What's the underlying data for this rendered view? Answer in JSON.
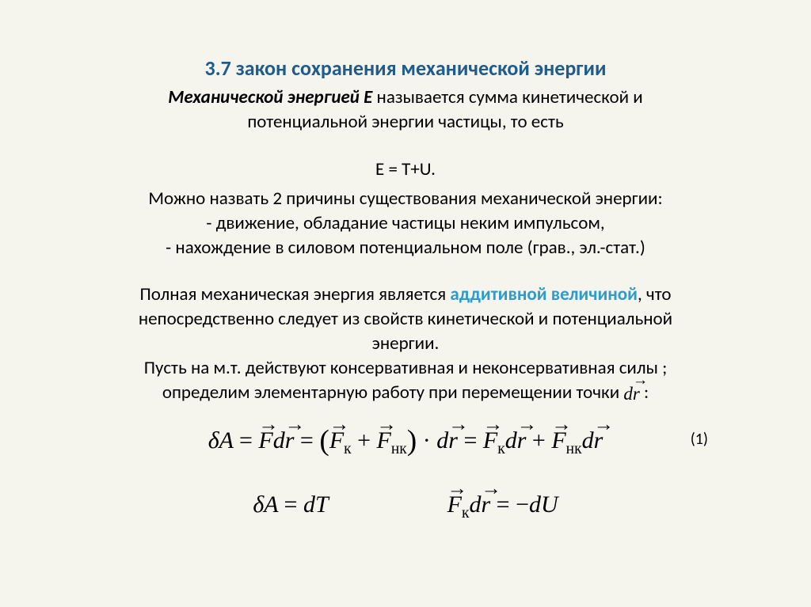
{
  "slide": {
    "title": "3.7  закон сохранения механической энергии",
    "def_bold": "Механической энергией E",
    "def_rest": "  называется сумма кинетической  и",
    "def_line2": "потенциальной энергии  частицы, то есть",
    "formula1": "E = T+U.",
    "line_reasons": "Можно назвать 2 причины существования механической энергии:",
    "reason1": "- движение, обладание частицы неким импульсом,",
    "reason2": "- нахождение в силовом потенциальном поле (грав., эл.-стат.)",
    "para2_a": "Полная механическая энергия является ",
    "para2_highlight": "аддитивной величиной",
    "para2_b": ", что",
    "para2_line2": "непосредственно следует из свойств кинетической и потенциальной",
    "para2_line3": "энергии.",
    "para3_line1": "Пусть на м.т.  действуют консервативная и неконсервативная силы ;",
    "para3_line2a": "определим элементарную работу при перемещении точки ",
    "para3_line2b": "      :",
    "equation_label": "(1)",
    "styling": {
      "background_color": "#f5f4ed",
      "title_color": "#1f5c8b",
      "highlight_color": "#2e9cc9",
      "text_color": "#000000",
      "title_fontsize": 26,
      "body_fontsize": 23,
      "equation_fontsize": 30,
      "body_font": "Calibri",
      "math_font": "Cambria Math"
    }
  }
}
